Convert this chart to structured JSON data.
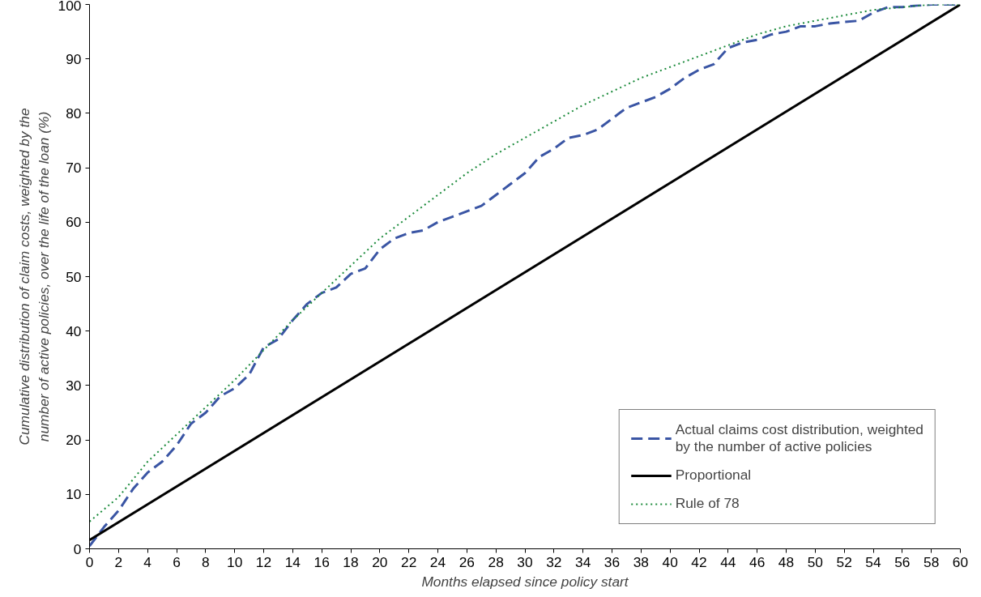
{
  "chart_data": {
    "type": "line",
    "xlabel": "Months elapsed since policy start",
    "ylabel": "Cumulative distribution of claim costs, weighted by the number of active policies, over the life of the loan (%)",
    "xlim": [
      0,
      60
    ],
    "xticks": [
      0,
      2,
      4,
      6,
      8,
      10,
      12,
      14,
      16,
      18,
      20,
      22,
      24,
      26,
      28,
      30,
      32,
      34,
      36,
      38,
      40,
      42,
      44,
      46,
      48,
      50,
      52,
      54,
      56,
      58,
      60
    ],
    "ylim": [
      0,
      100
    ],
    "yticks": [
      0,
      10,
      20,
      30,
      40,
      50,
      60,
      70,
      80,
      90,
      100
    ],
    "grid": false,
    "legend": "bottom right",
    "marker": "none",
    "series": [
      {
        "name": "Actual claims cost distribution, weighted by the number of active policies",
        "color": "#3a55a4",
        "line_style": "dashed",
        "x": [
          0,
          1,
          2,
          3,
          4,
          5,
          6,
          7,
          8,
          9,
          10,
          11,
          12,
          13,
          14,
          15,
          16,
          17,
          18,
          19,
          20,
          21,
          22,
          23,
          24,
          25,
          26,
          27,
          28,
          29,
          30,
          31,
          32,
          33,
          34,
          35,
          36,
          37,
          38,
          39,
          40,
          41,
          42,
          43,
          44,
          45,
          46,
          47,
          48,
          49,
          50,
          51,
          52,
          53,
          54,
          55,
          56,
          57,
          58,
          59,
          60
        ],
        "values": [
          0.5,
          4,
          7,
          11,
          14,
          16,
          19,
          23,
          25,
          28,
          29.5,
          32,
          37,
          38.5,
          42,
          45,
          47,
          48,
          50.5,
          51.5,
          55,
          57,
          58,
          58.5,
          60,
          61,
          62,
          63,
          65,
          67,
          69,
          72,
          73.5,
          75.5,
          76,
          77,
          79,
          81,
          82,
          83,
          84.5,
          86.5,
          88,
          89,
          92,
          93,
          93.5,
          94.5,
          95,
          96,
          96,
          96.5,
          96.8,
          97,
          98.5,
          99.5,
          99.5,
          99.8,
          100,
          100,
          100
        ]
      },
      {
        "name": "Proportional",
        "color": "#000000",
        "line_style": "solid",
        "x": [
          0,
          60
        ],
        "values": [
          1.6,
          100
        ]
      },
      {
        "name": "Rule of 78",
        "color": "#1a8a3a",
        "line_style": "dotted",
        "x": [
          0,
          2,
          4,
          6,
          8,
          10,
          12,
          14,
          16,
          18,
          20,
          22,
          24,
          26,
          28,
          30,
          32,
          34,
          36,
          38,
          40,
          42,
          44,
          46,
          48,
          50,
          52,
          54,
          56,
          58,
          60
        ],
        "values": [
          5,
          9.5,
          16,
          21,
          26,
          31,
          36.5,
          42,
          47,
          52,
          57,
          61,
          65,
          69,
          72.5,
          75.5,
          78.5,
          81.5,
          84,
          86.5,
          88.5,
          90.5,
          92.5,
          94.5,
          96,
          97,
          98,
          99,
          99.5,
          100,
          100
        ]
      }
    ]
  }
}
